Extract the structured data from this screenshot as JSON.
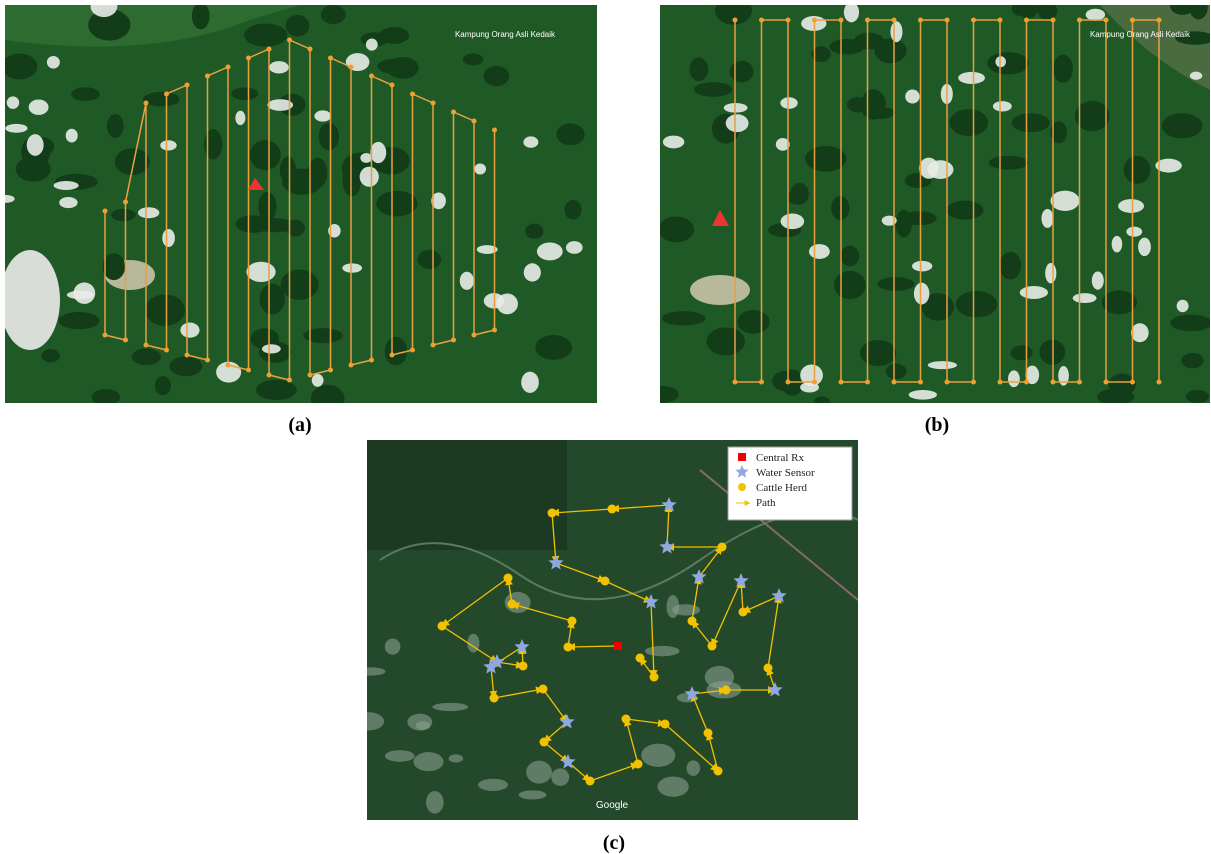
{
  "panels": [
    {
      "label": "(a)",
      "map_label": "Kampung Orang Asli Kedaik"
    },
    {
      "label": "(b)",
      "map_label": "Kampung Orang Asli Kedaik"
    },
    {
      "label": "(c)",
      "watermark": "Google",
      "legend": [
        "Central Rx",
        "Water Sensor",
        "Cattle Herd",
        "Path"
      ]
    }
  ]
}
